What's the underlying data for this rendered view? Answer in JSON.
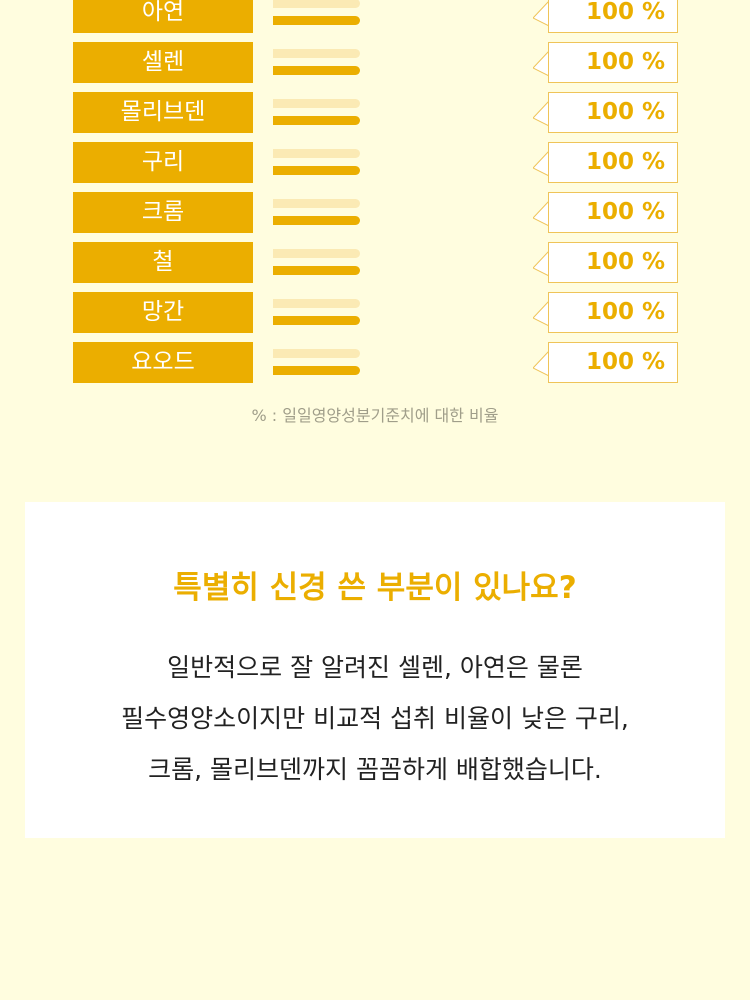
{
  "nutrients": [
    {
      "name": "아연",
      "percent": 100,
      "label": "100 %"
    },
    {
      "name": "셀렌",
      "percent": 100,
      "label": "100 %"
    },
    {
      "name": "몰리브덴",
      "percent": 100,
      "label": "100 %"
    },
    {
      "name": "구리",
      "percent": 100,
      "label": "100 %"
    },
    {
      "name": "크롬",
      "percent": 100,
      "label": "100 %"
    },
    {
      "name": "철",
      "percent": 100,
      "label": "100 %"
    },
    {
      "name": "망간",
      "percent": 100,
      "label": "100 %"
    },
    {
      "name": "요오드",
      "percent": 100,
      "label": "100 %"
    }
  ],
  "footnote": "% : 일일영양성분기준치에 대한 비율",
  "card": {
    "title": "특별히 신경 쓴 부분이 있나요?",
    "lines": [
      "일반적으로 잘 알려진 셀렌, 아연은 물론",
      "필수영양소이지만 비교적 섭취 비율이 낮은 구리,",
      "크롬, 몰리브덴까지 꼼꼼하게 배합했습니다."
    ]
  },
  "colors": {
    "accent": "#ebae00",
    "background": "#fffddf",
    "bar_reference": "#fbeab4"
  }
}
